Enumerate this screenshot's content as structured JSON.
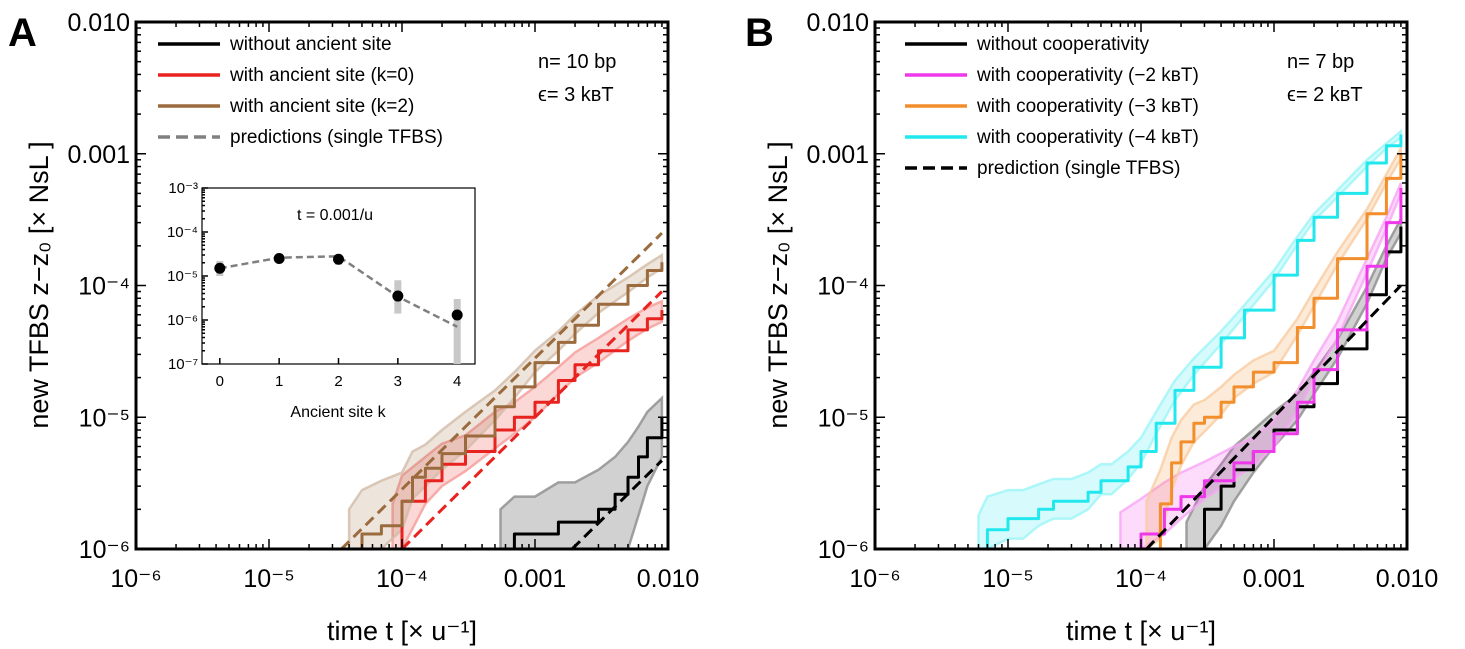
{
  "chart_data": [
    {
      "panel_label": "A",
      "type": "line",
      "xlabel": "time t   [× u⁻¹]",
      "ylabel": "new TFBS  z−z₀   [× NsL ]",
      "xscale": "log",
      "yscale": "log",
      "xlim": [
        1e-06,
        0.01
      ],
      "ylim": [
        1e-06,
        0.01
      ],
      "x_ticks": [
        {
          "v": 1e-06,
          "label": "10⁻⁶"
        },
        {
          "v": 1e-05,
          "label": "10⁻⁵"
        },
        {
          "v": 0.0001,
          "label": "10⁻⁴"
        },
        {
          "v": 0.001,
          "label": "0.001"
        },
        {
          "v": 0.01,
          "label": "0.010"
        }
      ],
      "y_ticks": [
        {
          "v": 1e-06,
          "label": "10⁻⁶"
        },
        {
          "v": 1e-05,
          "label": "10⁻⁵"
        },
        {
          "v": 0.0001,
          "label": "10⁻⁴"
        },
        {
          "v": 0.001,
          "label": "0.001"
        },
        {
          "v": 0.01,
          "label": "0.010"
        }
      ],
      "annotation": [
        "n= 10 bp",
        "ϵ= 3 kʙT"
      ],
      "legend_position": "top-left",
      "series": [
        {
          "name": "without ancient site",
          "color": "#000000",
          "style": "solid",
          "band": true,
          "x": [
            0.00055,
            0.0007,
            0.001,
            0.0015,
            0.002,
            0.003,
            0.004,
            0.005,
            0.006,
            0.007,
            0.009
          ],
          "y": [
            1e-06,
            1.3e-06,
            1.3e-06,
            1.6e-06,
            1.6e-06,
            2e-06,
            2.6e-06,
            3.5e-06,
            5e-06,
            7e-06,
            1e-05
          ],
          "lo": [
            1e-06,
            1e-06,
            1e-06,
            1e-06,
            1e-06,
            1e-06,
            1e-06,
            1e-06,
            1.8e-06,
            3e-06,
            5e-06
          ],
          "hi": [
            2e-06,
            2.5e-06,
            2.5e-06,
            3.2e-06,
            3.2e-06,
            4e-06,
            5e-06,
            6.5e-06,
            8.5e-06,
            1.1e-05,
            1.4e-05
          ]
        },
        {
          "name": "with ancient site (k=0)",
          "color": "#e8221e",
          "style": "solid",
          "band": true,
          "x": [
            8.5e-05,
            0.0001,
            0.00015,
            0.0002,
            0.0003,
            0.0005,
            0.0007,
            0.001,
            0.0015,
            0.002,
            0.003,
            0.005,
            0.007,
            0.009
          ],
          "y": [
            1e-06,
            2.3e-06,
            3.3e-06,
            4.4e-06,
            5.5e-06,
            8e-06,
            1e-05,
            1.3e-05,
            1.9e-05,
            2.5e-05,
            3.2e-05,
            4.6e-05,
            5.6e-05,
            6.5e-05
          ],
          "lo": [
            1e-06,
            1e-06,
            2.2e-06,
            3e-06,
            3.9e-06,
            5.8e-06,
            7.5e-06,
            1e-05,
            1.5e-05,
            2e-05,
            2.6e-05,
            3.8e-05,
            4.7e-05,
            5.3e-05
          ],
          "hi": [
            2.2e-06,
            3.6e-06,
            5e-06,
            6.3e-06,
            7.3e-06,
            1.1e-05,
            1.3e-05,
            1.7e-05,
            2.4e-05,
            3.1e-05,
            4e-05,
            5.6e-05,
            6.8e-05,
            7.6e-05
          ]
        },
        {
          "name": "with ancient site (k=2)",
          "color": "#9b6b3e",
          "style": "solid",
          "band": true,
          "x": [
            4e-05,
            5e-05,
            7e-05,
            0.0001,
            0.00012,
            0.00015,
            0.0002,
            0.0003,
            0.0005,
            0.0007,
            0.001,
            0.0015,
            0.002,
            0.003,
            0.005,
            0.007,
            0.009
          ],
          "y": [
            1e-06,
            1.3e-06,
            1.5e-06,
            2.3e-06,
            3.5e-06,
            4.1e-06,
            5.3e-06,
            7.2e-06,
            1.2e-05,
            1.7e-05,
            2.6e-05,
            3.7e-05,
            5e-05,
            7.2e-05,
            0.0001,
            0.00013,
            0.00015
          ],
          "lo": [
            1e-06,
            1e-06,
            1e-06,
            1.4e-06,
            2.4e-06,
            3e-06,
            4e-06,
            5.6e-06,
            9.5e-06,
            1.4e-05,
            2.2e-05,
            3.2e-05,
            4.3e-05,
            6.2e-05,
            8.9e-05,
            0.000115,
            0.000135
          ],
          "hi": [
            2e-06,
            2.8e-06,
            3.3e-06,
            3.8e-06,
            5.5e-06,
            6.2e-06,
            8e-06,
            1.1e-05,
            1.6e-05,
            2.2e-05,
            3.2e-05,
            4.5e-05,
            6e-05,
            8.4e-05,
            0.000115,
            0.000145,
            0.00017
          ]
        },
        {
          "name": "predictions (single TFBS)",
          "color": "#808080",
          "style": "dashed",
          "band": false,
          "x": [],
          "y": []
        },
        {
          "name": "",
          "color": "#9b6b3e",
          "style": "dashed",
          "band": false,
          "x": [
            3.5e-05,
            0.009
          ],
          "y": [
            1e-06,
            0.00025
          ]
        },
        {
          "name": "",
          "color": "#e8221e",
          "style": "dashed",
          "band": false,
          "x": [
            0.0001,
            0.009
          ],
          "y": [
            1e-06,
            9e-05
          ]
        },
        {
          "name": "",
          "color": "#000000",
          "style": "dashed",
          "band": false,
          "x": [
            0.0019,
            0.009
          ],
          "y": [
            1e-06,
            4.7e-06
          ]
        }
      ],
      "inset": {
        "type": "scatter",
        "xlabel": "Ancient site k",
        "title": "t = 0.001/u",
        "yscale": "log",
        "xlim": [
          -0.3,
          4.3
        ],
        "ylim": [
          1e-07,
          0.001
        ],
        "x_ticks": [
          {
            "v": 0,
            "label": "0"
          },
          {
            "v": 1,
            "label": "1"
          },
          {
            "v": 2,
            "label": "2"
          },
          {
            "v": 3,
            "label": "3"
          },
          {
            "v": 4,
            "label": "4"
          }
        ],
        "y_ticks": [
          {
            "v": 1e-07,
            "label": "10⁻⁷"
          },
          {
            "v": 1e-06,
            "label": "10⁻⁶"
          },
          {
            "v": 1e-05,
            "label": "10⁻⁵"
          },
          {
            "v": 0.0001,
            "label": "10⁻⁴"
          },
          {
            "v": 0.001,
            "label": "10⁻³"
          }
        ],
        "points": [
          {
            "k": 0,
            "value": 1.5e-05,
            "err_lo": 1e-05,
            "err_hi": 2.2e-05
          },
          {
            "k": 1,
            "value": 2.5e-05,
            "err_lo": 2e-05,
            "err_hi": 3.2e-05
          },
          {
            "k": 2,
            "value": 2.4e-05,
            "err_lo": 1.8e-05,
            "err_hi": 3.1e-05
          },
          {
            "k": 3,
            "value": 3.5e-06,
            "err_lo": 1.4e-06,
            "err_hi": 8e-06
          },
          {
            "k": 4,
            "value": 1.3e-06,
            "err_lo": 1e-07,
            "err_hi": 3e-06
          }
        ],
        "prediction": {
          "k": [
            0,
            1,
            2,
            3,
            4
          ],
          "y": [
            1.5e-05,
            2.6e-05,
            2.8e-05,
            3.4e-06,
            7e-07
          ],
          "color": "#808080",
          "style": "dashed"
        }
      }
    },
    {
      "panel_label": "B",
      "type": "line",
      "xlabel": "time t   [× u⁻¹]",
      "ylabel": "new TFBS  z−z₀   [× NsL ]",
      "xscale": "log",
      "yscale": "log",
      "xlim": [
        1e-06,
        0.01
      ],
      "ylim": [
        1e-06,
        0.01
      ],
      "x_ticks": [
        {
          "v": 1e-06,
          "label": "10⁻⁶"
        },
        {
          "v": 1e-05,
          "label": "10⁻⁵"
        },
        {
          "v": 0.0001,
          "label": "10⁻⁴"
        },
        {
          "v": 0.001,
          "label": "0.001"
        },
        {
          "v": 0.01,
          "label": "0.010"
        }
      ],
      "y_ticks": [
        {
          "v": 1e-06,
          "label": "10⁻⁶"
        },
        {
          "v": 1e-05,
          "label": "10⁻⁵"
        },
        {
          "v": 0.0001,
          "label": "10⁻⁴"
        },
        {
          "v": 0.001,
          "label": "0.001"
        },
        {
          "v": 0.01,
          "label": "0.010"
        }
      ],
      "annotation": [
        "n= 7 bp",
        "ϵ= 2 kʙT"
      ],
      "legend_position": "top-left",
      "series": [
        {
          "name": "without cooperativity",
          "color": "#000000",
          "style": "solid",
          "band": true,
          "x": [
            0.00022,
            0.0003,
            0.0004,
            0.0005,
            0.0007,
            0.001,
            0.0015,
            0.002,
            0.003,
            0.005,
            0.007,
            0.009
          ],
          "y": [
            1e-06,
            2e-06,
            3e-06,
            4e-06,
            5.5e-06,
            8e-06,
            1.2e-05,
            1.8e-05,
            3.3e-05,
            8.5e-05,
            0.00018,
            0.00028
          ],
          "lo": [
            1e-06,
            1e-06,
            1.5e-06,
            2.3e-06,
            3.8e-06,
            6e-06,
            9.5e-06,
            1.5e-05,
            2.8e-05,
            7.3e-05,
            0.00016,
            0.00025
          ],
          "hi": [
            1.6e-06,
            3e-06,
            4.4e-06,
            6e-06,
            8e-06,
            1.1e-05,
            1.5e-05,
            2.2e-05,
            3.9e-05,
            9.8e-05,
            0.0002,
            0.00032
          ]
        },
        {
          "name": "with cooperativity (−2 kʙT)",
          "color": "#ee38ea",
          "style": "solid",
          "band": true,
          "x": [
            7e-05,
            0.0001,
            0.00015,
            0.0002,
            0.0003,
            0.0005,
            0.0007,
            0.001,
            0.0015,
            0.002,
            0.003,
            0.005,
            0.007,
            0.009
          ],
          "y": [
            1e-06,
            1.3e-06,
            2e-06,
            2.5e-06,
            3.3e-06,
            4.5e-06,
            5.5e-06,
            7.5e-06,
            1.3e-05,
            2.3e-05,
            4.6e-05,
            0.00014,
            0.0003,
            0.00055
          ],
          "lo": [
            1e-06,
            1e-06,
            1.3e-06,
            1.7e-06,
            2.4e-06,
            3.4e-06,
            4.3e-06,
            6e-06,
            1.1e-05,
            1.95e-05,
            4e-05,
            0.000125,
            0.00027,
            0.0005
          ],
          "hi": [
            1.9e-06,
            2.4e-06,
            3.2e-06,
            3.8e-06,
            4.6e-06,
            6e-06,
            7e-06,
            9.4e-06,
            1.6e-05,
            2.7e-05,
            5.3e-05,
            0.00016,
            0.00033,
            0.0006
          ]
        },
        {
          "name": "with cooperativity (−3 kʙT)",
          "color": "#f28e2b",
          "style": "solid",
          "band": true,
          "x": [
            0.00011,
            0.00014,
            0.00017,
            0.0002,
            0.00025,
            0.0003,
            0.0004,
            0.0005,
            0.0007,
            0.001,
            0.0015,
            0.002,
            0.003,
            0.005,
            0.007,
            0.009
          ],
          "y": [
            1e-06,
            2.2e-06,
            4.5e-06,
            6.5e-06,
            9e-06,
            1e-05,
            1.3e-05,
            1.7e-05,
            2.2e-05,
            2.6e-05,
            4.8e-05,
            8e-05,
            0.00016,
            0.00035,
            0.00065,
            0.001
          ],
          "lo": [
            1e-06,
            1.2e-06,
            2.8e-06,
            4.3e-06,
            6.5e-06,
            7.8e-06,
            1.05e-05,
            1.4e-05,
            1.8e-05,
            2.2e-05,
            4.2e-05,
            7e-05,
            0.000145,
            0.00032,
            0.0006,
            0.00092
          ],
          "hi": [
            2.3e-06,
            4e-06,
            7e-06,
            9.5e-06,
            1.25e-05,
            1.35e-05,
            1.7e-05,
            2.1e-05,
            2.7e-05,
            3.2e-05,
            5.6e-05,
            9.2e-05,
            0.00018,
            0.00038,
            0.0007,
            0.0011
          ]
        },
        {
          "name": "with cooperativity (−4 kʙT)",
          "color": "#22e8ee",
          "style": "solid",
          "band": true,
          "x": [
            6e-06,
            7e-06,
            1e-05,
            1.3e-05,
            1.7e-05,
            2.2e-05,
            3e-05,
            4e-05,
            5e-05,
            6e-05,
            8e-05,
            0.0001,
            0.00013,
            0.00018,
            0.00025,
            0.0004,
            0.0006,
            0.001,
            0.0015,
            0.002,
            0.003,
            0.005,
            0.007,
            0.009
          ],
          "y": [
            1e-06,
            1.4e-06,
            1.7e-06,
            1.7e-06,
            2e-06,
            2.3e-06,
            2.3e-06,
            2.7e-06,
            3.3e-06,
            3.3e-06,
            4.2e-06,
            5.5e-06,
            9e-06,
            1.6e-05,
            2.4e-05,
            4e-05,
            6.5e-05,
            0.00012,
            0.00022,
            0.00033,
            0.0005,
            0.00085,
            0.00115,
            0.0014
          ],
          "lo": [
            1e-06,
            1e-06,
            1.2e-06,
            1.2e-06,
            1.5e-06,
            1.7e-06,
            1.7e-06,
            2e-06,
            2.6e-06,
            2.6e-06,
            3.4e-06,
            4.5e-06,
            7.5e-06,
            1.35e-05,
            2.1e-05,
            3.6e-05,
            5.9e-05,
            0.00011,
            0.000205,
            0.00031,
            0.00047,
            0.0008,
            0.0011,
            0.00133
          ],
          "hi": [
            1.8e-06,
            2.5e-06,
            2.8e-06,
            2.8e-06,
            3.1e-06,
            3.4e-06,
            3.4e-06,
            3.8e-06,
            4.4e-06,
            4.4e-06,
            5.5e-06,
            7e-06,
            1.1e-05,
            1.9e-05,
            2.8e-05,
            4.5e-05,
            7.1e-05,
            0.00013,
            0.000235,
            0.00035,
            0.00053,
            0.0009,
            0.0012,
            0.00148
          ]
        },
        {
          "name": "prediction (single TFBS)",
          "color": "#000000",
          "style": "dashed",
          "band": false,
          "x": [
            0.00011,
            0.009
          ],
          "y": [
            1e-06,
            0.0001
          ]
        }
      ]
    }
  ]
}
